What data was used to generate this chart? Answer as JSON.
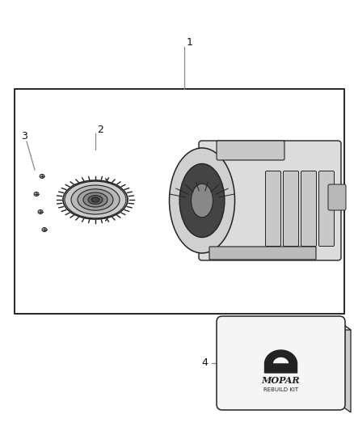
{
  "background_color": "#ffffff",
  "label_1": "1",
  "label_2": "2",
  "label_3": "3",
  "label_4": "4",
  "mopar_text": "MOPAR",
  "rebuild_kit_text": "REBUILD KIT",
  "box_border_color": "#000000",
  "text_color": "#111111",
  "line_color": "#888888",
  "dark_color": "#222222",
  "mid_color": "#666666",
  "light_color": "#cccccc",
  "lighter_color": "#e0e0e0",
  "kit_face_color": "#f5f5f5",
  "kit_side_color": "#cccccc",
  "kit_top_color": "#e8e8e8"
}
